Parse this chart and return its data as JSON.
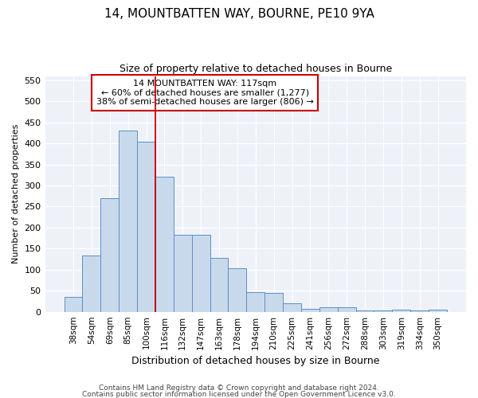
{
  "title": "14, MOUNTBATTEN WAY, BOURNE, PE10 9YA",
  "subtitle": "Size of property relative to detached houses in Bourne",
  "xlabel": "Distribution of detached houses by size in Bourne",
  "ylabel": "Number of detached properties",
  "bar_color": "#c9d9ec",
  "bar_edge_color": "#5b8fc9",
  "categories": [
    "38sqm",
    "54sqm",
    "69sqm",
    "85sqm",
    "100sqm",
    "116sqm",
    "132sqm",
    "147sqm",
    "163sqm",
    "178sqm",
    "194sqm",
    "210sqm",
    "225sqm",
    "241sqm",
    "256sqm",
    "272sqm",
    "288sqm",
    "303sqm",
    "319sqm",
    "334sqm",
    "350sqm"
  ],
  "values": [
    35,
    133,
    270,
    430,
    405,
    320,
    183,
    183,
    128,
    103,
    46,
    45,
    21,
    7,
    10,
    10,
    4,
    4,
    5,
    4,
    5
  ],
  "vline_color": "#cc0000",
  "vline_index": 5,
  "annotation_text": "14 MOUNTBATTEN WAY: 117sqm\n← 60% of detached houses are smaller (1,277)\n38% of semi-detached houses are larger (806) →",
  "ylim": [
    0,
    560
  ],
  "yticks": [
    0,
    50,
    100,
    150,
    200,
    250,
    300,
    350,
    400,
    450,
    500,
    550
  ],
  "footer1": "Contains HM Land Registry data © Crown copyright and database right 2024.",
  "footer2": "Contains public sector information licensed under the Open Government Licence v3.0.",
  "bg_color": "#eef2f8",
  "title_fontsize": 11,
  "subtitle_fontsize": 9,
  "ylabel_fontsize": 8,
  "xlabel_fontsize": 9,
  "tick_fontsize": 8,
  "xtick_fontsize": 7.5,
  "annot_fontsize": 8,
  "footer_fontsize": 6.5
}
